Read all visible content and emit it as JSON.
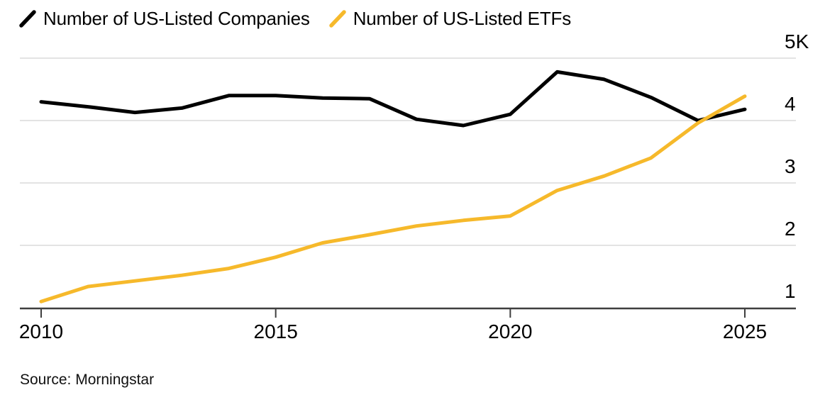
{
  "source": "Source: Morningstar",
  "colors": {
    "background": "#ffffff",
    "grid": "#e3e3e3",
    "axis": "#3f3f3f",
    "text": "#000000",
    "companies_line": "#000000",
    "etfs_line": "#f6b92b"
  },
  "chart_data": {
    "type": "line",
    "title": "",
    "xlabel": "",
    "ylabel": "",
    "x": [
      2010,
      2011,
      2012,
      2013,
      2014,
      2015,
      2016,
      2017,
      2018,
      2019,
      2020,
      2021,
      2022,
      2023,
      2024,
      2025
    ],
    "x_ticks": [
      2010,
      2015,
      2020,
      2025
    ],
    "x_tick_labels": [
      "2010",
      "2015",
      "2020",
      "2025"
    ],
    "y_ticks": [
      {
        "value": 1000,
        "label": "1"
      },
      {
        "value": 2000,
        "label": "2"
      },
      {
        "value": 3000,
        "label": "3"
      },
      {
        "value": 4000,
        "label": "4"
      },
      {
        "value": 5000,
        "label": "5K"
      }
    ],
    "ylim": [
      1000,
      5000
    ],
    "grid": "horizontal-only",
    "legend_position": "top-left",
    "series": [
      {
        "name": "Number of US-Listed Companies",
        "color": "#000000",
        "values": [
          4300,
          4220,
          4130,
          4200,
          4400,
          4400,
          4360,
          4350,
          4020,
          3920,
          4100,
          4780,
          4660,
          4370,
          4000,
          4180
        ]
      },
      {
        "name": "Number of US-Listed ETFs",
        "color": "#f6b92b",
        "values": [
          1100,
          1340,
          1430,
          1520,
          1630,
          1810,
          2040,
          2170,
          2310,
          2400,
          2470,
          2880,
          3110,
          3400,
          3960,
          4390
        ]
      }
    ]
  }
}
